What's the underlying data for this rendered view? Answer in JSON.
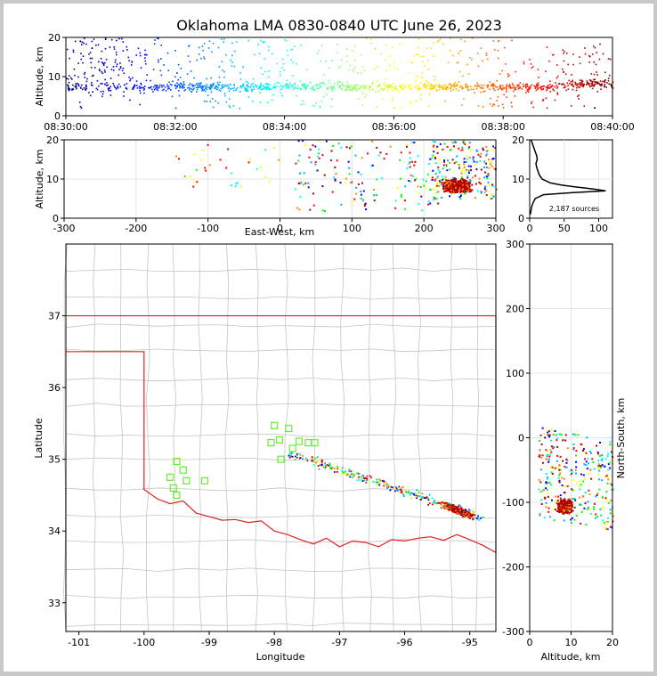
{
  "chart_data": [
    {
      "panel": "altitude-vs-time",
      "type": "scatter",
      "title": "Oklahoma LMA 0830-0840 UTC June 26, 2023",
      "xlabel": "",
      "ylabel": "Altitude, km",
      "ylim": [
        0,
        20
      ],
      "yticks": [
        "0",
        "10",
        "20"
      ],
      "xticks": [
        "08:30:00",
        "08:32:00",
        "08:34:00",
        "08:36:00",
        "08:38:00",
        "08:40:00"
      ],
      "colormap": "jet (blue early to dark red late)"
    },
    {
      "panel": "altitude-vs-east-west",
      "type": "scatter",
      "xlabel": "East-West, km",
      "ylabel": "Altitude, km",
      "xlim": [
        -300,
        300
      ],
      "ylim": [
        0,
        20
      ],
      "xticks": [
        "-300",
        "-200",
        "-100",
        "0",
        "100",
        "200",
        "300"
      ],
      "yticks": [
        "0",
        "10",
        "20"
      ]
    },
    {
      "panel": "altitude-histogram",
      "type": "line",
      "xlim": [
        0,
        120
      ],
      "ylim": [
        0,
        20
      ],
      "xticks": [
        "0",
        "50",
        "100"
      ],
      "yticks": [
        "0",
        "10",
        "20"
      ],
      "annotation": "2,187 sources",
      "altitude_km": [
        1,
        2,
        3,
        4,
        5,
        6,
        6.5,
        7,
        7.5,
        8,
        8.5,
        9,
        10,
        11,
        12,
        13,
        14,
        15,
        16,
        17,
        18,
        19,
        20
      ],
      "source_counts": [
        1,
        2,
        3,
        5,
        8,
        20,
        60,
        110,
        90,
        65,
        45,
        30,
        18,
        14,
        12,
        10,
        9,
        11,
        10,
        8,
        6,
        4,
        2
      ]
    },
    {
      "panel": "plan-view-map",
      "type": "scatter",
      "xlabel": "Longitude",
      "ylabel": "Latitude",
      "xlim": [
        -101.2,
        -94.6
      ],
      "ylim": [
        32.6,
        38
      ],
      "xticks": [
        "-101",
        "-100",
        "-99",
        "-98",
        "-97",
        "-96",
        "-95"
      ],
      "yticks": [
        "33",
        "34",
        "35",
        "36",
        "37"
      ],
      "station_marker": "green open squares",
      "stations": [
        {
          "lon": -99.6,
          "lat": 34.75
        },
        {
          "lon": -99.55,
          "lat": 34.6
        },
        {
          "lon": -99.5,
          "lat": 34.5
        },
        {
          "lon": -99.5,
          "lat": 34.97
        },
        {
          "lon": -99.4,
          "lat": 34.85
        },
        {
          "lon": -99.35,
          "lat": 34.7
        },
        {
          "lon": -99.07,
          "lat": 34.7
        },
        {
          "lon": -98.0,
          "lat": 35.47
        },
        {
          "lon": -98.05,
          "lat": 35.23
        },
        {
          "lon": -97.92,
          "lat": 35.27
        },
        {
          "lon": -97.9,
          "lat": 35.0
        },
        {
          "lon": -97.78,
          "lat": 35.43
        },
        {
          "lon": -97.72,
          "lat": 35.15
        },
        {
          "lon": -97.62,
          "lat": 35.25
        },
        {
          "lon": -97.48,
          "lat": 35.23
        },
        {
          "lon": -97.38,
          "lat": 35.23
        }
      ]
    },
    {
      "panel": "north-south-vs-altitude",
      "type": "scatter",
      "xlabel": "Altitude, km",
      "ylabel": "North-South, km",
      "xlim": [
        0,
        20
      ],
      "ylim": [
        -300,
        300
      ],
      "xticks": [
        "0",
        "10",
        "20"
      ],
      "yticks": [
        "-300",
        "-200",
        "-100",
        "0",
        "100",
        "200",
        "300"
      ]
    }
  ]
}
